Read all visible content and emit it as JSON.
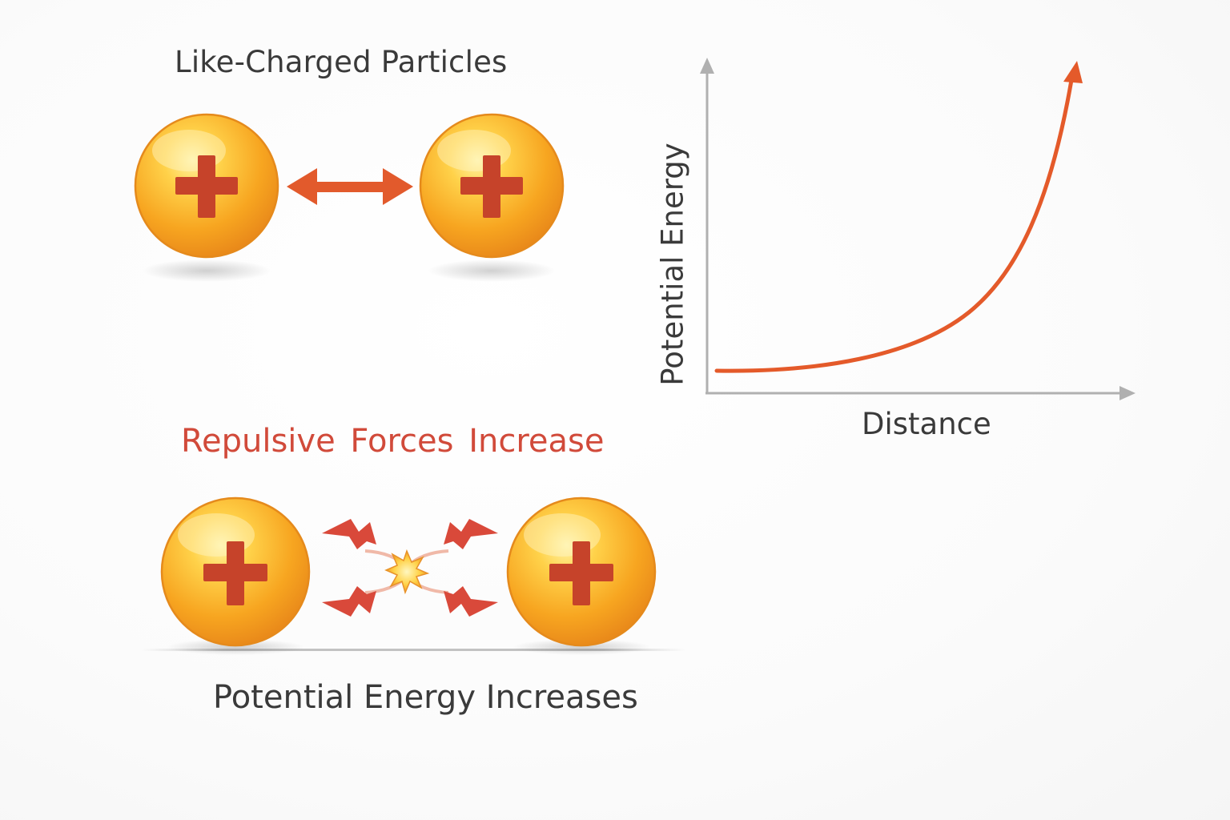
{
  "top_panel": {
    "title": "Like-Charged Particles",
    "particle_symbol": "+"
  },
  "bottom_panel": {
    "heading": "Repulsive Forces  Increase",
    "caption": "Potential Energy Increases",
    "particle_symbol": "+"
  },
  "graph": {
    "x_label": "Distance",
    "y_label": "Potential Energy"
  },
  "colors": {
    "particle_fill": "#f7a520",
    "particle_highlight": "#ffe27a",
    "plus_sign": "#c6432a",
    "arrow": "#e25a2c",
    "curve": "#e45a2a",
    "heading_red": "#d14a3a",
    "axis": "#b0b0b0",
    "text": "#3a3a3a"
  }
}
